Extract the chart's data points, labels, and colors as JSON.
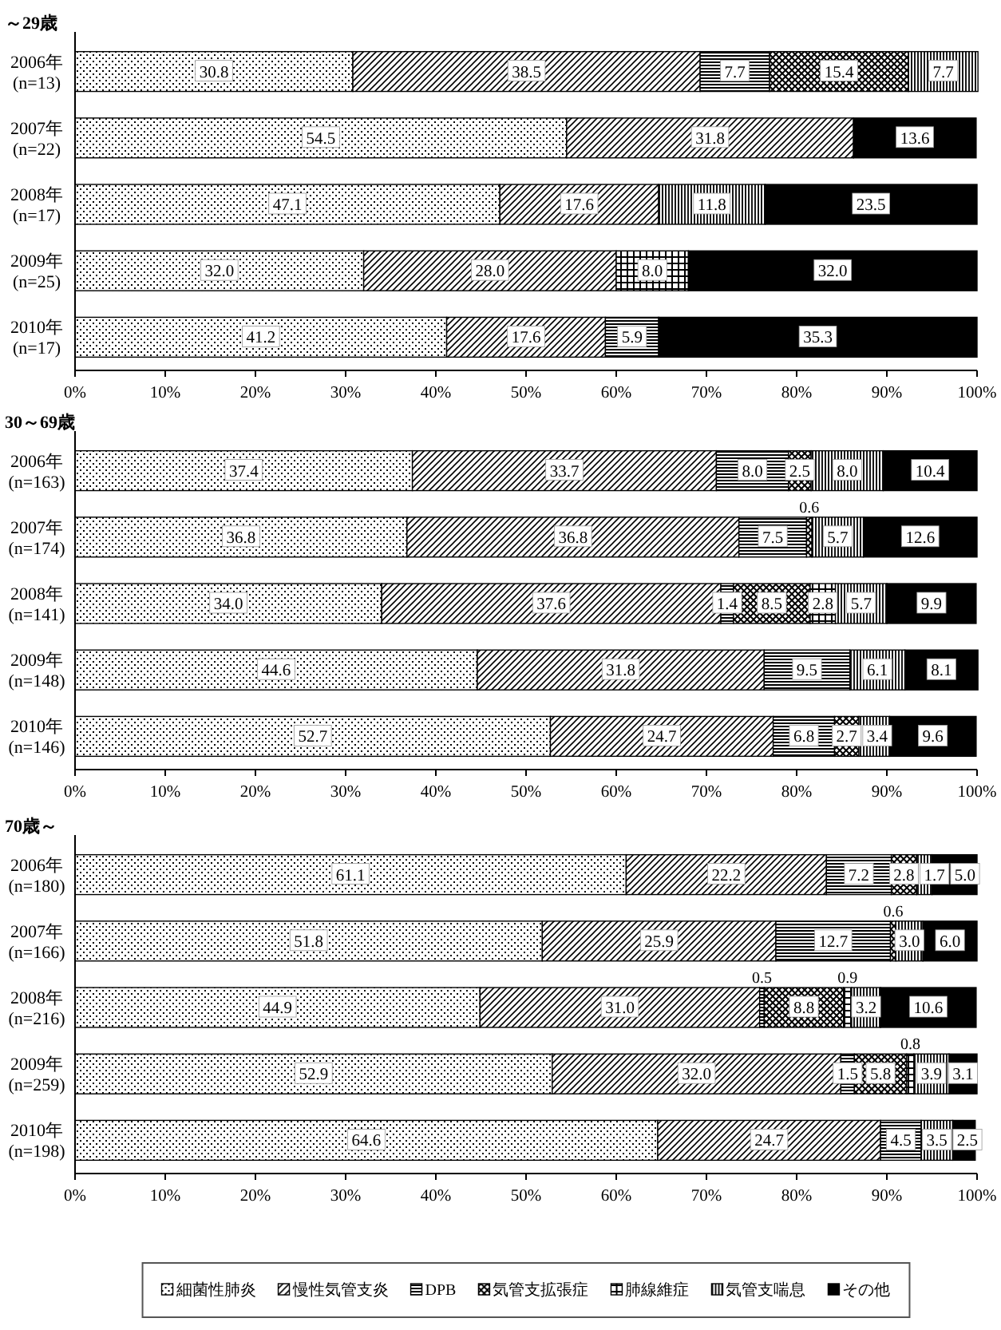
{
  "chart_data": [
    {
      "type": "bar",
      "orientation": "horizontal",
      "stacked": true,
      "title": "～29歳",
      "categories": [
        "2006年\n(n=13)",
        "2007年\n(n=22)",
        "2008年\n(n=17)",
        "2009年\n(n=25)",
        "2010年\n(n=17)"
      ],
      "series": [
        {
          "color": "#000000",
          "values": [
            30.8,
            54.5,
            47.1,
            32.0,
            41.2
          ],
          "value_labels": [
            "30.8",
            "54.5",
            "47.1",
            "32.0",
            "41.2"
          ]
        },
        {
          "color": "#000000",
          "values": [
            38.5,
            31.8,
            17.6,
            28.0,
            17.6
          ],
          "value_labels": [
            "38.5",
            "31.8",
            "17.6",
            "28.0",
            "17.6"
          ]
        },
        {
          "color": "#000000",
          "values": [
            7.7,
            null,
            null,
            null,
            5.9
          ],
          "value_labels": [
            "7.7",
            null,
            null,
            null,
            "5.9"
          ]
        },
        {
          "color": "#000000",
          "values": [
            15.4,
            null,
            null,
            null,
            null
          ],
          "value_labels": [
            "15.4",
            null,
            null,
            null,
            null
          ]
        },
        {
          "color": "#000000",
          "values": [
            null,
            null,
            null,
            8.0,
            null
          ],
          "value_labels": [
            null,
            null,
            null,
            "8.0",
            null
          ]
        },
        {
          "color": "#000000",
          "values": [
            7.7,
            null,
            11.8,
            null,
            null
          ],
          "value_labels": [
            "7.7",
            null,
            "11.8",
            null,
            null
          ]
        },
        {
          "color": "#000000",
          "values": [
            null,
            13.6,
            23.5,
            32.0,
            35.3
          ],
          "value_labels": [
            null,
            "13.6",
            "23.5",
            "32.0",
            "35.3"
          ]
        }
      ],
      "xlim": [
        0,
        100
      ],
      "xticks": [
        {
          "value": 0,
          "label": "0%"
        },
        {
          "value": 10,
          "label": "10%"
        },
        {
          "value": 20,
          "label": "20%"
        },
        {
          "value": 30,
          "label": "30%"
        },
        {
          "value": 40,
          "label": "40%"
        },
        {
          "value": 50,
          "label": "50%"
        },
        {
          "value": 60,
          "label": "60%"
        },
        {
          "value": 70,
          "label": "70%"
        },
        {
          "value": 80,
          "label": "80%"
        },
        {
          "value": 90,
          "label": "90%"
        },
        {
          "value": 100,
          "label": "100%"
        }
      ]
    },
    {
      "type": "bar",
      "orientation": "horizontal",
      "stacked": true,
      "title": "30～69歳",
      "categories": [
        "2006年\n(n=163)",
        "2007年\n(n=174)",
        "2008年\n(n=141)",
        "2009年\n(n=148)",
        "2010年\n(n=146)"
      ],
      "series": [
        {
          "color": "#000000",
          "values": [
            37.4,
            36.8,
            34.0,
            44.6,
            52.7
          ],
          "value_labels": [
            "37.4",
            "36.8",
            "34.0",
            "44.6",
            "52.7"
          ]
        },
        {
          "color": "#000000",
          "values": [
            33.7,
            36.8,
            37.6,
            31.8,
            24.7
          ],
          "value_labels": [
            "33.7",
            "36.8",
            "37.6",
            "31.8",
            "24.7"
          ]
        },
        {
          "color": "#000000",
          "values": [
            8.0,
            7.5,
            1.4,
            9.5,
            6.8
          ],
          "value_labels": [
            "8.0",
            "7.5",
            "1.4",
            "9.5",
            "6.8"
          ]
        },
        {
          "color": "#000000",
          "values": [
            2.5,
            0.6,
            8.5,
            null,
            2.7
          ],
          "value_labels": [
            "2.5",
            "0.6",
            "8.5",
            null,
            "2.7"
          ]
        },
        {
          "color": "#000000",
          "values": [
            null,
            null,
            2.8,
            null,
            null
          ],
          "value_labels": [
            null,
            null,
            "2.8",
            null,
            null
          ]
        },
        {
          "color": "#000000",
          "values": [
            8.0,
            5.7,
            5.7,
            6.1,
            3.4
          ],
          "value_labels": [
            "8.0",
            "5.7",
            "5.7",
            "6.1",
            "3.4"
          ]
        },
        {
          "color": "#000000",
          "values": [
            10.4,
            12.6,
            9.9,
            8.1,
            9.6
          ],
          "value_labels": [
            "10.4",
            "12.6",
            "9.9",
            "8.1",
            "9.6"
          ]
        }
      ],
      "xlim": [
        0,
        100
      ],
      "xticks": [
        {
          "value": 0,
          "label": "0%"
        },
        {
          "value": 10,
          "label": "10%"
        },
        {
          "value": 20,
          "label": "20%"
        },
        {
          "value": 30,
          "label": "30%"
        },
        {
          "value": 40,
          "label": "40%"
        },
        {
          "value": 50,
          "label": "50%"
        },
        {
          "value": 60,
          "label": "60%"
        },
        {
          "value": 70,
          "label": "70%"
        },
        {
          "value": 80,
          "label": "80%"
        },
        {
          "value": 90,
          "label": "90%"
        },
        {
          "value": 100,
          "label": "100%"
        }
      ]
    },
    {
      "type": "bar",
      "orientation": "horizontal",
      "stacked": true,
      "title": "70歳～",
      "categories": [
        "2006年\n(n=180)",
        "2007年\n(n=166)",
        "2008年\n(n=216)",
        "2009年\n(n=259)",
        "2010年\n(n=198)"
      ],
      "series": [
        {
          "name": "細菌性肺炎",
          "color": "#000000",
          "values": [
            61.1,
            51.8,
            44.9,
            52.9,
            64.6
          ],
          "value_labels": [
            "61.1",
            "51.8",
            "44.9",
            "52.9",
            "64.6"
          ]
        },
        {
          "name": "慢性気管支炎",
          "color": "#000000",
          "values": [
            22.2,
            25.9,
            31.0,
            32.0,
            24.7
          ],
          "value_labels": [
            "22.2",
            "25.9",
            "31.0",
            "32.0",
            "24.7"
          ]
        },
        {
          "name": "DPB",
          "color": "#000000",
          "values": [
            7.2,
            12.7,
            0.5,
            1.5,
            4.5
          ],
          "value_labels": [
            "7.2",
            "12.7",
            "0.5",
            "1.5",
            "4.5"
          ]
        },
        {
          "name": "気管支拡張症",
          "color": "#000000",
          "values": [
            2.8,
            0.6,
            8.8,
            5.8,
            null
          ],
          "value_labels": [
            "2.8",
            "0.6",
            "8.8",
            "5.8",
            null
          ]
        },
        {
          "name": "肺線維症",
          "color": "#000000",
          "values": [
            null,
            null,
            0.9,
            0.8,
            null
          ],
          "value_labels": [
            null,
            null,
            "0.9",
            "0.8",
            null
          ]
        },
        {
          "name": "気管支喘息",
          "color": "#000000",
          "values": [
            1.7,
            3.0,
            3.2,
            3.9,
            3.5
          ],
          "value_labels": [
            "1.7",
            "3.0",
            "3.2",
            "3.9",
            "3.5"
          ]
        },
        {
          "name": "その他",
          "color": "#000000",
          "values": [
            5.0,
            6.0,
            10.6,
            3.1,
            2.5
          ],
          "value_labels": [
            "5.0",
            "6.0",
            "10.6",
            "3.1",
            "2.5"
          ]
        }
      ],
      "xlim": [
        0,
        100
      ],
      "xticks": [
        {
          "value": 0,
          "label": "0%"
        },
        {
          "value": 10,
          "label": "10%"
        },
        {
          "value": 20,
          "label": "20%"
        },
        {
          "value": 30,
          "label": "30%"
        },
        {
          "value": 40,
          "label": "40%"
        },
        {
          "value": 50,
          "label": "50%"
        },
        {
          "value": 60,
          "label": "60%"
        },
        {
          "value": 70,
          "label": "70%"
        },
        {
          "value": 80,
          "label": "80%"
        },
        {
          "value": 90,
          "label": "90%"
        },
        {
          "value": 100,
          "label": "100%"
        }
      ],
      "legend": "bottom"
    }
  ]
}
